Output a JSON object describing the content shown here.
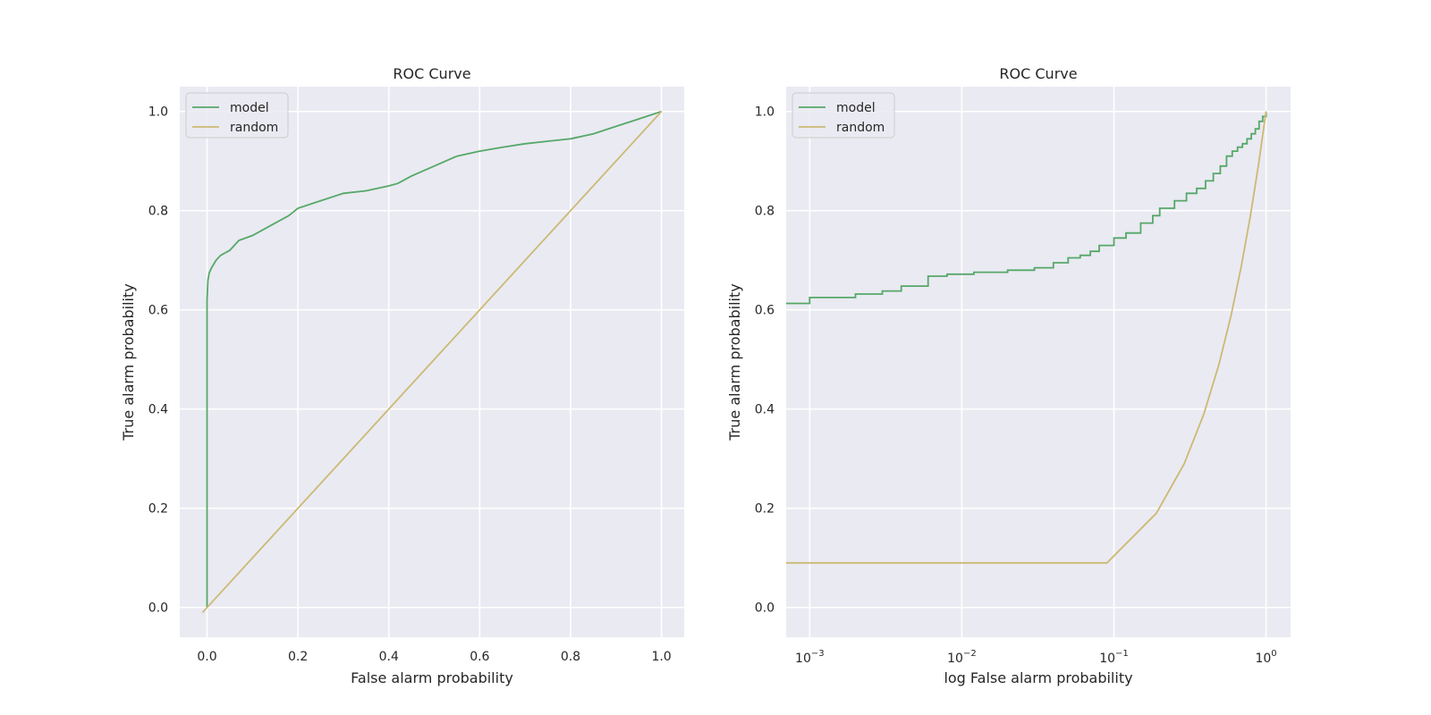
{
  "chart_data": [
    {
      "type": "line",
      "title": "ROC Curve",
      "xlabel": "False alarm probability",
      "ylabel": "True alarm probability",
      "xscale": "linear",
      "xlim": [
        -0.06,
        1.05
      ],
      "ylim": [
        -0.06,
        1.05
      ],
      "xticks": [
        0.0,
        0.2,
        0.4,
        0.6,
        0.8,
        1.0
      ],
      "xtick_labels": [
        "0.0",
        "0.2",
        "0.4",
        "0.6",
        "0.8",
        "1.0"
      ],
      "yticks": [
        0.0,
        0.2,
        0.4,
        0.6,
        0.8,
        1.0
      ],
      "ytick_labels": [
        "0.0",
        "0.2",
        "0.4",
        "0.6",
        "0.8",
        "1.0"
      ],
      "grid": true,
      "legend": "top-left",
      "series": [
        {
          "name": "model",
          "color": "#55a868",
          "x": [
            0.0,
            0.0,
            0.0,
            0.002,
            0.005,
            0.01,
            0.02,
            0.03,
            0.05,
            0.07,
            0.1,
            0.13,
            0.15,
            0.18,
            0.2,
            0.25,
            0.3,
            0.35,
            0.4,
            0.42,
            0.45,
            0.5,
            0.55,
            0.6,
            0.65,
            0.7,
            0.75,
            0.8,
            0.85,
            0.9,
            0.95,
            1.0
          ],
          "y": [
            0.0,
            0.6,
            0.62,
            0.66,
            0.675,
            0.685,
            0.7,
            0.71,
            0.72,
            0.74,
            0.75,
            0.765,
            0.775,
            0.79,
            0.805,
            0.82,
            0.835,
            0.84,
            0.85,
            0.855,
            0.87,
            0.89,
            0.91,
            0.92,
            0.928,
            0.935,
            0.94,
            0.945,
            0.955,
            0.97,
            0.985,
            1.0
          ]
        },
        {
          "name": "random",
          "color": "#ccb974",
          "x": [
            -0.01,
            1.0
          ],
          "y": [
            -0.01,
            1.0
          ]
        }
      ]
    },
    {
      "type": "line",
      "title": "ROC Curve",
      "xlabel": "log False alarm probability",
      "ylabel": "True alarm probability",
      "xscale": "log",
      "xlim": [
        0.0007,
        1.45
      ],
      "ylim": [
        -0.06,
        1.05
      ],
      "xticks": [
        0.001,
        0.01,
        0.1,
        1
      ],
      "xtick_labels": [
        [
          "10",
          "−3"
        ],
        [
          "10",
          "−2"
        ],
        [
          "10",
          "−1"
        ],
        [
          "10",
          "0"
        ]
      ],
      "yticks": [
        0.0,
        0.2,
        0.4,
        0.6,
        0.8,
        1.0
      ],
      "ytick_labels": [
        "0.0",
        "0.2",
        "0.4",
        "0.6",
        "0.8",
        "1.0"
      ],
      "grid": true,
      "legend": "top-left",
      "series": [
        {
          "name": "model",
          "color": "#55a868",
          "step": true,
          "x": [
            0.0007,
            0.001,
            0.002,
            0.003,
            0.004,
            0.006,
            0.008,
            0.012,
            0.02,
            0.03,
            0.04,
            0.05,
            0.06,
            0.07,
            0.08,
            0.1,
            0.12,
            0.15,
            0.18,
            0.2,
            0.25,
            0.3,
            0.35,
            0.4,
            0.45,
            0.5,
            0.55,
            0.6,
            0.65,
            0.7,
            0.75,
            0.8,
            0.85,
            0.9,
            0.95,
            1.0
          ],
          "y": [
            0.613,
            0.625,
            0.632,
            0.638,
            0.648,
            0.668,
            0.672,
            0.676,
            0.68,
            0.685,
            0.695,
            0.705,
            0.71,
            0.718,
            0.73,
            0.745,
            0.755,
            0.775,
            0.79,
            0.805,
            0.82,
            0.835,
            0.845,
            0.86,
            0.875,
            0.89,
            0.91,
            0.92,
            0.928,
            0.935,
            0.945,
            0.955,
            0.965,
            0.98,
            0.99,
            1.0
          ]
        },
        {
          "name": "random",
          "color": "#ccb974",
          "x": [
            0.0007,
            0.09,
            0.19,
            0.29,
            0.39,
            0.49,
            0.59,
            0.69,
            0.79,
            0.89,
            1.0
          ],
          "y": [
            0.09,
            0.09,
            0.19,
            0.29,
            0.39,
            0.49,
            0.59,
            0.69,
            0.79,
            0.89,
            1.0
          ]
        }
      ]
    }
  ]
}
